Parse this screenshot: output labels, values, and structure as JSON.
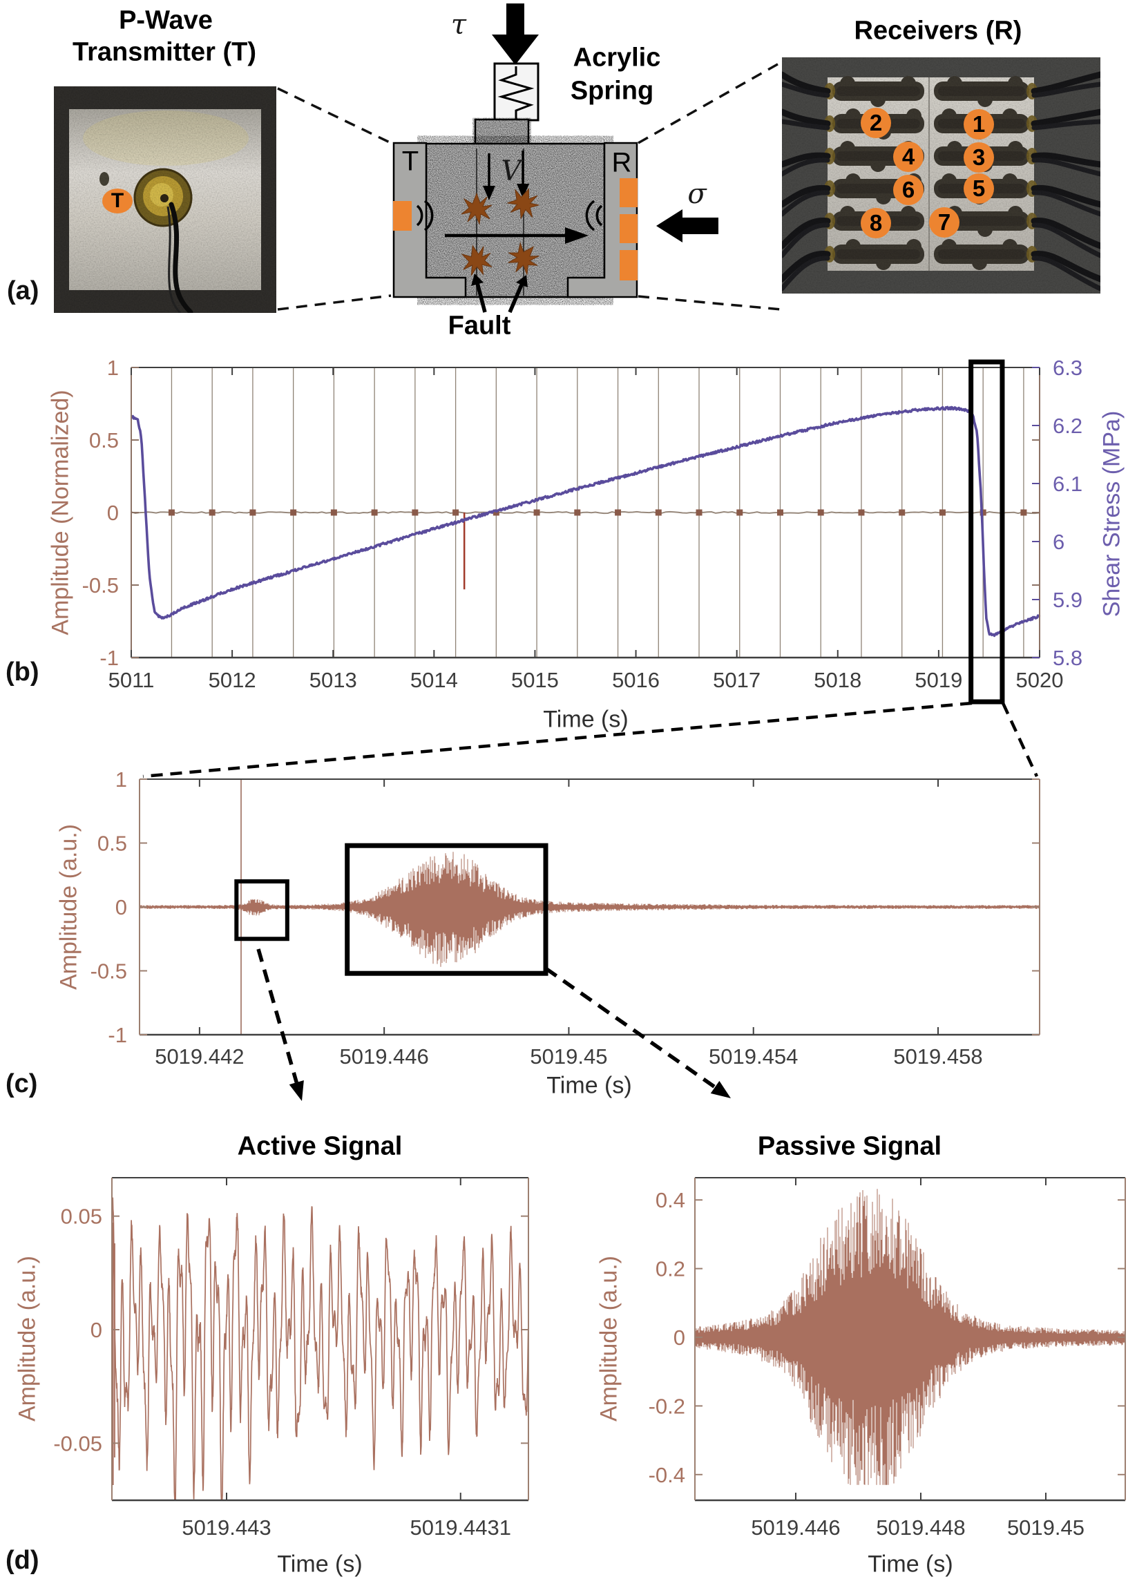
{
  "colors": {
    "waveform_brown": "#a9705f",
    "label_brown": "#a87361",
    "stress_purple": "#5a4c9c",
    "purple_label": "#6c5ead",
    "accent_orange": "#ed8430",
    "red_transient": "#a03a2a",
    "starburst_brown": "#8a4715",
    "pulse_line": "#8f8376",
    "zero_line": "#97887b",
    "tick_dark": "#3d3d3d"
  },
  "panel_a": {
    "label": "(a)",
    "transmitter_title_line1": "P-Wave",
    "transmitter_title_line2": "Transmitter (T)",
    "transmitter_marker": "T",
    "receivers_title": "Receivers (R)",
    "receiver_numbers": [
      "2",
      "1",
      "4",
      "3",
      "6",
      "5",
      "8",
      "7"
    ],
    "diagram": {
      "tau": "τ",
      "sigma": "σ",
      "velocity": "V",
      "spring_line1": "Acrylic",
      "spring_line2": "Spring",
      "transmitter_plate": "T",
      "receiver_plate": "R",
      "fault": "Fault"
    }
  },
  "panel_b": {
    "label": "(b)",
    "ylabel_left": "Amplitude (Normalized)",
    "ylabel_right": "Shear Stress (MPa)",
    "xlabel": "Time (s)"
  },
  "panel_c": {
    "label": "(c)",
    "ylabel": "Amplitude (a.u.)",
    "xlabel": "Time (s)"
  },
  "panel_d": {
    "label": "(d)",
    "active": {
      "title": "Active Signal",
      "ylabel": "Amplitude (a.u.)",
      "xlabel": "Time (s)"
    },
    "passive": {
      "title": "Passive Signal",
      "ylabel": "Amplitude (a.u.)",
      "xlabel": "Time (s)"
    }
  },
  "chart_data": [
    {
      "id": "panel_b",
      "type": "line",
      "xlabel": "Time (s)",
      "ylabel_left": "Amplitude (Normalized)",
      "ylabel_right": "Shear Stress (MPa)",
      "xlim": [
        5011,
        5020
      ],
      "x_ticks": [
        5011,
        5012,
        5013,
        5014,
        5015,
        5016,
        5017,
        5018,
        5019,
        5020
      ],
      "ylim_left": [
        -1,
        1
      ],
      "y_ticks_left": [
        1,
        0.5,
        0,
        -0.5,
        -1
      ],
      "ylim_right": [
        5.8,
        6.3
      ],
      "y_ticks_right": [
        6.3,
        6.2,
        6.1,
        6,
        5.9,
        5.8
      ],
      "grid": false,
      "legend": "none",
      "series": [
        {
          "name": "shear_stress_MPa",
          "axis": "right",
          "keypoints": [
            [
              5011.0,
              6.215
            ],
            [
              5011.06,
              6.212
            ],
            [
              5011.1,
              6.18
            ],
            [
              5011.14,
              6.06
            ],
            [
              5011.18,
              5.94
            ],
            [
              5011.23,
              5.878
            ],
            [
              5011.3,
              5.868
            ],
            [
              5011.38,
              5.872
            ],
            [
              5011.5,
              5.885
            ],
            [
              5011.7,
              5.898
            ],
            [
              5012.0,
              5.918
            ],
            [
              5012.5,
              5.944
            ],
            [
              5013.0,
              5.97
            ],
            [
              5013.5,
              5.996
            ],
            [
              5014.0,
              6.022
            ],
            [
              5014.5,
              6.047
            ],
            [
              5015.0,
              6.071
            ],
            [
              5015.5,
              6.095
            ],
            [
              5016.0,
              6.118
            ],
            [
              5016.5,
              6.141
            ],
            [
              5017.0,
              6.163
            ],
            [
              5017.5,
              6.185
            ],
            [
              5018.0,
              6.205
            ],
            [
              5018.4,
              6.218
            ],
            [
              5018.8,
              6.227
            ],
            [
              5019.1,
              6.23
            ],
            [
              5019.25,
              6.228
            ],
            [
              5019.33,
              6.222
            ],
            [
              5019.38,
              6.19
            ],
            [
              5019.42,
              6.08
            ],
            [
              5019.45,
              5.95
            ],
            [
              5019.47,
              5.87
            ],
            [
              5019.5,
              5.842
            ],
            [
              5019.55,
              5.838
            ],
            [
              5019.65,
              5.848
            ],
            [
              5019.8,
              5.86
            ],
            [
              5020.0,
              5.872
            ]
          ]
        },
        {
          "name": "active_source_pulses",
          "axis": "left",
          "amplitude_span": [
            -1,
            1
          ],
          "pulse_times": [
            5011.4,
            5011.802,
            5012.204,
            5012.606,
            5013.008,
            5013.41,
            5013.812,
            5014.214,
            5014.616,
            5015.018,
            5015.42,
            5015.822,
            5016.224,
            5016.626,
            5017.028,
            5017.43,
            5017.832,
            5018.234,
            5018.636,
            5019.038,
            5019.44,
            5019.842
          ]
        },
        {
          "name": "amplitude_baseline",
          "axis": "left",
          "value": 0
        },
        {
          "name": "transient_spike",
          "axis": "left",
          "time": 5014.3,
          "amplitude_range": [
            -0.53,
            0
          ]
        }
      ],
      "zoom_box": {
        "t_range": [
          5019.32,
          5019.63
        ],
        "note": "stress drop highlighted"
      }
    },
    {
      "id": "panel_c",
      "type": "line",
      "xlabel": "Time (s)",
      "ylabel": "Amplitude (a.u.)",
      "xlim": [
        5019.4407,
        5019.4602
      ],
      "x_ticks": [
        5019.442,
        5019.446,
        5019.45,
        5019.454,
        5019.458
      ],
      "ylim": [
        -1,
        1
      ],
      "y_ticks": [
        1,
        0.5,
        0,
        -0.5,
        -1
      ],
      "noise_level": 0.015,
      "active_pulse_time": 5019.4429,
      "bursts": [
        {
          "name": "active_arrival",
          "center": 5019.4432,
          "sigma": 0.00017,
          "peak": 0.055
        },
        {
          "name": "passive_event_main",
          "center": 5019.4474,
          "sigma_left": 0.00085,
          "sigma_right": 0.0007,
          "peak": 0.4
        },
        {
          "name": "passive_event_coda",
          "center": 5019.4476,
          "sigma": 0.0014,
          "peak": 0.05
        },
        {
          "name": "tail",
          "center": 5019.4505,
          "sigma": 0.002,
          "peak": 0.012
        }
      ],
      "annotation_boxes": [
        {
          "name": "active_signal_zoom",
          "t_range": [
            5019.4428,
            5019.4439
          ],
          "amp_range": [
            -0.25,
            0.2
          ]
        },
        {
          "name": "passive_signal_zoom",
          "t_range": [
            5019.4452,
            5019.4495
          ],
          "amp_range": [
            -0.52,
            0.48
          ]
        }
      ]
    },
    {
      "id": "panel_d_active",
      "type": "line",
      "title": "Active Signal",
      "xlabel": "Time (s)",
      "ylabel": "Amplitude (a.u.)",
      "xlim": [
        5019.442951,
        5019.443129
      ],
      "x_ticks": [
        5019.443,
        5019.4431
      ],
      "ylim": [
        -0.0751,
        0.0669
      ],
      "y_ticks": [
        0.05,
        0,
        -0.05
      ],
      "peak_amplitude": 0.062,
      "min_amplitude": -0.073,
      "envelope": [
        [
          0,
          0.05
        ],
        [
          0.02,
          0.058
        ],
        [
          0.05,
          0.04
        ],
        [
          0.08,
          0.047
        ],
        [
          0.11,
          0.036
        ],
        [
          0.15,
          0.06
        ],
        [
          0.18,
          0.054
        ],
        [
          0.21,
          0.062
        ],
        [
          0.24,
          0.059
        ],
        [
          0.27,
          0.057
        ],
        [
          0.3,
          0.051
        ],
        [
          0.34,
          0.047
        ],
        [
          0.38,
          0.044
        ],
        [
          0.44,
          0.046
        ],
        [
          0.5,
          0.042
        ],
        [
          0.56,
          0.04
        ],
        [
          0.62,
          0.043
        ],
        [
          0.68,
          0.038
        ],
        [
          0.74,
          0.042
        ],
        [
          0.8,
          0.04
        ],
        [
          0.86,
          0.036
        ],
        [
          0.92,
          0.04
        ],
        [
          1,
          0.034
        ]
      ],
      "dominant_cycles": [
        44,
        16.5,
        90
      ]
    },
    {
      "id": "panel_d_passive",
      "type": "line",
      "title": "Passive Signal",
      "xlabel": "Time (s)",
      "ylabel": "Amplitude (a.u.)",
      "xlim": [
        5019.444387,
        5019.451271
      ],
      "x_ticks": [
        5019.446,
        5019.448,
        5019.45
      ],
      "ylim": [
        -0.47,
        0.465
      ],
      "y_ticks": [
        0.4,
        0.2,
        0,
        -0.2,
        -0.4
      ],
      "noise_level": 0.02,
      "peak_amplitude": 0.375,
      "min_amplitude": -0.41,
      "bursts": [
        {
          "name": "main_event",
          "center": 5019.4473,
          "sigma_left": 0.00075,
          "sigma_right": 0.00065,
          "peak": 0.375
        },
        {
          "name": "coda",
          "center": 5019.447,
          "sigma": 0.0016,
          "peak": 0.045
        },
        {
          "name": "foreshock",
          "center": 5019.4465,
          "sigma": 0.00028,
          "peak": 0.05
        }
      ],
      "negative_asymmetry": 1.08
    }
  ]
}
